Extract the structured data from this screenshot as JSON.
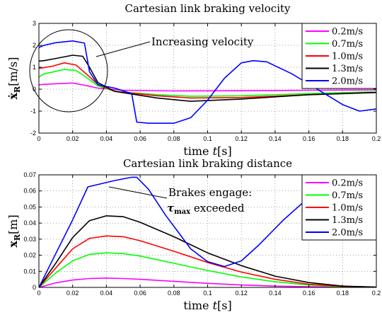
{
  "chart_data": [
    {
      "type": "line",
      "title": "Cartesian link braking velocity",
      "xlabel_prefix": "time ",
      "xlabel_var": "t",
      "xlabel_unit": "[s]",
      "ylabel_main": "ẋ",
      "ylabel_sub": "R",
      "ylabel_unit": "[m/s]",
      "xlim": [
        0,
        0.2
      ],
      "ylim": [
        -2,
        3
      ],
      "xticks": [
        "0",
        "0.02",
        "0.04",
        "0.06",
        "0.08",
        "0.1",
        "0.12",
        "0.14",
        "0.16",
        "0.18",
        "0.2"
      ],
      "yticks": [
        "-2",
        "-1",
        "0",
        "1",
        "2",
        "3"
      ],
      "grid": true,
      "legend": "top-right",
      "annotation": "Increasing velocity",
      "series": [
        {
          "name": "0.2m/s",
          "color": "#ff00ff",
          "x": [
            0,
            0.003,
            0.01,
            0.02,
            0.027,
            0.035,
            0.05,
            0.08,
            0.12,
            0.16,
            0.2
          ],
          "y": [
            0.2,
            0.22,
            0.25,
            0.28,
            0.18,
            0.05,
            -0.05,
            -0.08,
            -0.07,
            -0.05,
            -0.03
          ]
        },
        {
          "name": "0.7m/s",
          "color": "#00ff00",
          "x": [
            0,
            0.003,
            0.008,
            0.015,
            0.022,
            0.028,
            0.035,
            0.045,
            0.07,
            0.09,
            0.12,
            0.16,
            0.2
          ],
          "y": [
            0.55,
            0.7,
            0.78,
            0.9,
            0.85,
            0.55,
            0.15,
            -0.1,
            -0.25,
            -0.32,
            -0.3,
            -0.2,
            -0.12
          ]
        },
        {
          "name": "1.0m/s",
          "color": "#ff0000",
          "x": [
            0,
            0.003,
            0.008,
            0.015,
            0.022,
            0.028,
            0.035,
            0.045,
            0.07,
            0.09,
            0.12,
            0.16,
            0.2
          ],
          "y": [
            0.95,
            0.98,
            1.05,
            1.2,
            1.1,
            0.7,
            0.22,
            -0.1,
            -0.3,
            -0.4,
            -0.38,
            -0.25,
            -0.15
          ]
        },
        {
          "name": "1.3m/s",
          "color": "#000000",
          "x": [
            0,
            0.003,
            0.01,
            0.02,
            0.026,
            0.03,
            0.035,
            0.045,
            0.07,
            0.09,
            0.12,
            0.16,
            0.2
          ],
          "y": [
            1.28,
            1.3,
            1.4,
            1.55,
            1.5,
            1.0,
            0.3,
            -0.1,
            -0.4,
            -0.55,
            -0.45,
            -0.25,
            -0.15
          ]
        },
        {
          "name": "2.0m/s",
          "color": "#0000ff",
          "x": [
            0,
            0.003,
            0.01,
            0.02,
            0.027,
            0.03,
            0.035,
            0.045,
            0.055,
            0.058,
            0.065,
            0.08,
            0.09,
            0.1,
            0.11,
            0.12,
            0.127,
            0.135,
            0.15,
            0.165,
            0.18,
            0.19,
            0.2
          ],
          "y": [
            1.9,
            2.0,
            2.12,
            2.2,
            2.1,
            0.8,
            0.2,
            0.05,
            -0.2,
            -1.5,
            -1.55,
            -1.55,
            -1.3,
            -0.5,
            0.5,
            1.2,
            1.3,
            1.25,
            0.7,
            0.0,
            -0.7,
            -1.0,
            -0.9
          ]
        }
      ]
    },
    {
      "type": "line",
      "title": "Cartesian link braking distance",
      "xlabel_prefix": "time ",
      "xlabel_var": "t",
      "xlabel_unit": "[s]",
      "ylabel_main": "x",
      "ylabel_sub": "R",
      "ylabel_unit": "[m]",
      "xlim": [
        0,
        0.2
      ],
      "ylim": [
        0,
        0.07
      ],
      "xticks": [
        "0",
        "0.02",
        "0.04",
        "0.06",
        "0.08",
        "0.1",
        "0.12",
        "0.14",
        "0.16",
        "0.18",
        "0.2"
      ],
      "yticks": [
        "0",
        "0.01",
        "0.02",
        "0.03",
        "0.04",
        "0.05",
        "0.06",
        "0.07"
      ],
      "grid": true,
      "legend": "top-right",
      "annotation_line1": "Brakes engage:",
      "annotation_sym": "τ",
      "annotation_sub": "max",
      "annotation_line2": " exceeded",
      "series": [
        {
          "name": "0.2m/s",
          "color": "#ff00ff",
          "x": [
            0,
            0.01,
            0.02,
            0.03,
            0.04,
            0.05,
            0.06,
            0.08,
            0.1,
            0.12,
            0.14,
            0.16,
            0.18,
            0.2
          ],
          "y": [
            0,
            0.0028,
            0.0046,
            0.0055,
            0.0058,
            0.0055,
            0.005,
            0.0038,
            0.0025,
            0.0015,
            0.0008,
            0.0004,
            0.0001,
            0
          ]
        },
        {
          "name": "0.7m/s",
          "color": "#00ff00",
          "x": [
            0,
            0.01,
            0.02,
            0.03,
            0.04,
            0.05,
            0.06,
            0.08,
            0.1,
            0.12,
            0.14,
            0.16,
            0.18,
            0.2
          ],
          "y": [
            0,
            0.009,
            0.0165,
            0.0205,
            0.0215,
            0.021,
            0.0195,
            0.015,
            0.0105,
            0.0065,
            0.0035,
            0.0015,
            0.0004,
            0.0001
          ]
        },
        {
          "name": "1.0m/s",
          "color": "#ff0000",
          "x": [
            0,
            0.01,
            0.02,
            0.03,
            0.04,
            0.05,
            0.06,
            0.08,
            0.1,
            0.12,
            0.14,
            0.16,
            0.18,
            0.2
          ],
          "y": [
            0,
            0.012,
            0.024,
            0.0305,
            0.032,
            0.0315,
            0.029,
            0.0225,
            0.0155,
            0.0095,
            0.005,
            0.002,
            0.0006,
            0.0001
          ]
        },
        {
          "name": "1.3m/s",
          "color": "#000000",
          "x": [
            0,
            0.01,
            0.02,
            0.03,
            0.04,
            0.05,
            0.06,
            0.08,
            0.1,
            0.12,
            0.14,
            0.16,
            0.18,
            0.2
          ],
          "y": [
            0,
            0.015,
            0.031,
            0.0415,
            0.0445,
            0.044,
            0.0405,
            0.0315,
            0.0215,
            0.0135,
            0.007,
            0.003,
            0.0008,
            0.0002
          ]
        },
        {
          "name": "2.0m/s",
          "color": "#0000ff",
          "x": [
            0,
            0.01,
            0.02,
            0.029,
            0.035,
            0.045,
            0.055,
            0.058,
            0.065,
            0.075,
            0.09,
            0.1,
            0.11,
            0.12,
            0.13,
            0.145,
            0.16,
            0.175,
            0.19,
            0.2
          ],
          "y": [
            0,
            0.021,
            0.042,
            0.0625,
            0.064,
            0.0665,
            0.0685,
            0.0685,
            0.061,
            0.045,
            0.024,
            0.016,
            0.013,
            0.0165,
            0.026,
            0.042,
            0.056,
            0.063,
            0.055,
            0.038
          ]
        }
      ]
    }
  ]
}
